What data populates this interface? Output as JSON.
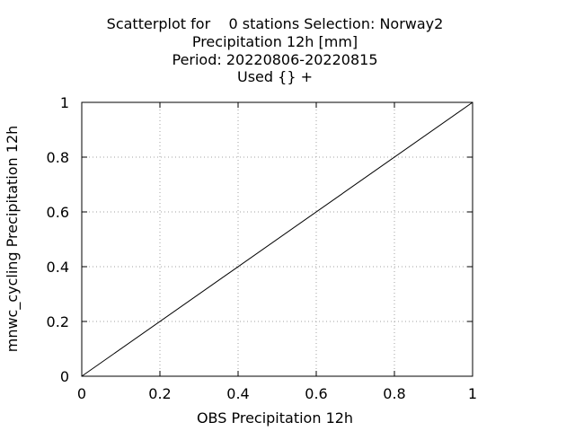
{
  "chart_data": {
    "type": "scatter",
    "title_lines": [
      "Scatterplot for    0 stations Selection: Norway2",
      "Precipitation 12h [mm]",
      "Period: 20220806-20220815",
      "Used {} +"
    ],
    "xlabel": "OBS Precipitation 12h",
    "ylabel": "mnwc_cycling Precipitation 12h",
    "xlim": [
      0,
      1
    ],
    "ylim": [
      0,
      1
    ],
    "x_ticks": [
      0,
      0.2,
      0.4,
      0.6,
      0.8,
      1
    ],
    "y_ticks": [
      0,
      0.2,
      0.4,
      0.6,
      0.8,
      1
    ],
    "x_tick_labels": [
      "0",
      "0.2",
      "0.4",
      "0.6",
      "0.8",
      "1"
    ],
    "y_tick_labels": [
      "0",
      "0.2",
      "0.4",
      "0.6",
      "0.8",
      "1"
    ],
    "grid": true,
    "series": [],
    "reference_line": {
      "x": [
        0,
        1
      ],
      "y": [
        0,
        1
      ]
    }
  }
}
